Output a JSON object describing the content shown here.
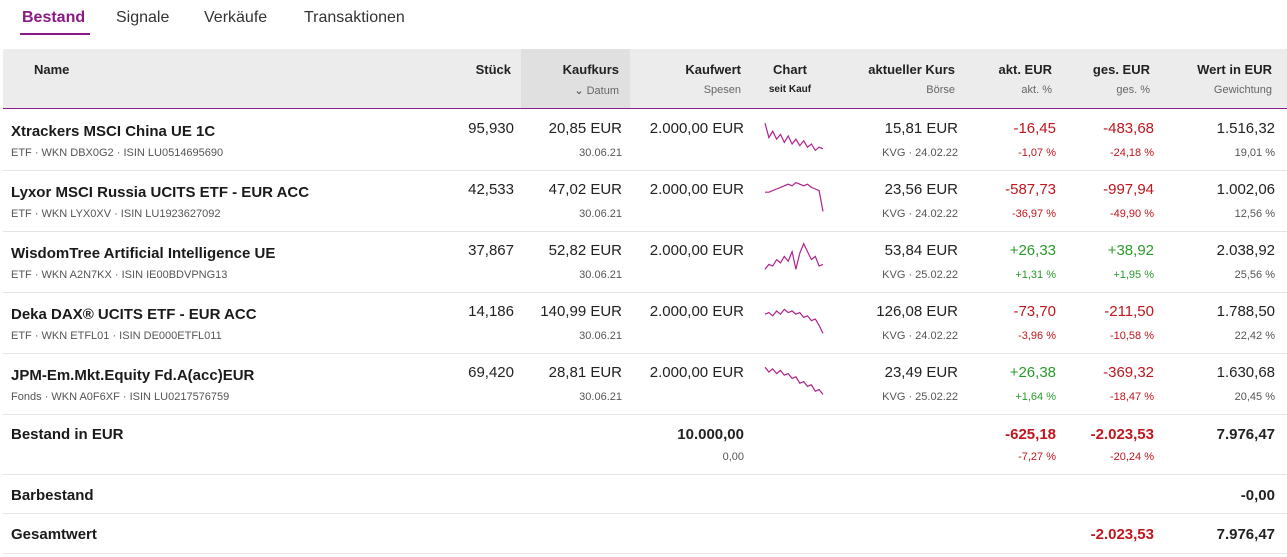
{
  "tabs": [
    "Bestand",
    "Signale",
    "Verkäufe",
    "Transaktionen"
  ],
  "header": {
    "name": "Name",
    "stueck": "Stück",
    "kaufkurs": "Kaufkurs",
    "kaufkurs_sub": "Datum",
    "kaufwert": "Kaufwert",
    "kaufwert_sub": "Spesen",
    "chart": "Chart",
    "chart_sub": "seit Kauf",
    "kurs": "aktueller Kurs",
    "kurs_sub": "Börse",
    "akt": "akt. EUR",
    "akt_sub": "akt. %",
    "ges": "ges. EUR",
    "ges_sub": "ges. %",
    "wert": "Wert in EUR",
    "wert_sub": "Gewichtung"
  },
  "rows": [
    {
      "name": "Xtrackers MSCI China UE 1C",
      "meta": "ETF · WKN DBX0G2 · ISIN LU0514695690",
      "stueck": "95,930",
      "kaufkurs": "20,85 EUR",
      "datum": "30.06.21",
      "kaufwert": "2.000,00 EUR",
      "kurs": "15,81 EUR",
      "boerse": "KVG · 24.02.22",
      "akt_eur": "-16,45",
      "akt_pct": "-1,07 %",
      "ges_eur": "-483,68",
      "ges_pct": "-24,18 %",
      "wert": "1.516,32",
      "gewichtung": "19,01 %",
      "spark": [
        0.1,
        0.55,
        0.35,
        0.6,
        0.45,
        0.7,
        0.5,
        0.75,
        0.6,
        0.8,
        0.65,
        0.85,
        0.75,
        0.95,
        0.85,
        0.9
      ]
    },
    {
      "name": "Lyxor MSCI Russia UCITS ETF - EUR ACC",
      "meta": "ETF · WKN LYX0XV · ISIN LU1923627092",
      "stueck": "42,533",
      "kaufkurs": "47,02 EUR",
      "datum": "30.06.21",
      "kaufwert": "2.000,00 EUR",
      "kurs": "23,56 EUR",
      "boerse": "KVG · 24.02.22",
      "akt_eur": "-587,73",
      "akt_pct": "-36,97 %",
      "ges_eur": "-997,94",
      "ges_pct": "-49,90 %",
      "wert": "1.002,06",
      "gewichtung": "12,56 %",
      "spark": [
        0.35,
        0.35,
        0.3,
        0.25,
        0.2,
        0.15,
        0.1,
        0.15,
        0.05,
        0.1,
        0.15,
        0.1,
        0.2,
        0.25,
        0.3,
        0.95
      ]
    },
    {
      "name": "WisdomTree Artificial Intelligence UE",
      "meta": "ETF · WKN A2N7KX · ISIN IE00BDVPNG13",
      "stueck": "37,867",
      "kaufkurs": "52,82 EUR",
      "datum": "30.06.21",
      "kaufwert": "2.000,00 EUR",
      "kurs": "53,84 EUR",
      "boerse": "KVG · 25.02.22",
      "akt_eur": "+26,33",
      "akt_pct": "+1,31 %",
      "ges_eur": "+38,92",
      "ges_pct": "+1,95 %",
      "wert": "2.038,92",
      "gewichtung": "25,56 %",
      "spark": [
        0.85,
        0.7,
        0.75,
        0.55,
        0.65,
        0.45,
        0.6,
        0.3,
        0.85,
        0.35,
        0.05,
        0.3,
        0.55,
        0.45,
        0.75,
        0.7
      ]
    },
    {
      "name": "Deka DAX® UCITS ETF - EUR ACC",
      "meta": "ETF · WKN ETFL01 · ISIN DE000ETFL011",
      "stueck": "14,186",
      "kaufkurs": "140,99 EUR",
      "datum": "30.06.21",
      "kaufwert": "2.000,00 EUR",
      "kurs": "126,08 EUR",
      "boerse": "KVG · 24.02.22",
      "akt_eur": "-73,70",
      "akt_pct": "-3,96 %",
      "ges_eur": "-211,50",
      "ges_pct": "-10,58 %",
      "wert": "1.788,50",
      "gewichtung": "22,42 %",
      "spark": [
        0.35,
        0.3,
        0.4,
        0.25,
        0.35,
        0.2,
        0.3,
        0.25,
        0.35,
        0.3,
        0.45,
        0.4,
        0.55,
        0.5,
        0.7,
        0.95
      ]
    },
    {
      "name": "JPM-Em.Mkt.Equity Fd.A(acc)EUR",
      "meta": "Fonds · WKN A0F6XF · ISIN LU0217576759",
      "stueck": "69,420",
      "kaufkurs": "28,81 EUR",
      "datum": "30.06.21",
      "kaufwert": "2.000,00 EUR",
      "kurs": "23,49 EUR",
      "boerse": "KVG · 25.02.22",
      "akt_eur": "+26,38",
      "akt_pct": "+1,64 %",
      "ges_eur": "-369,32",
      "ges_pct": "-18,47 %",
      "wert": "1.630,68",
      "gewichtung": "20,45 %",
      "spark": [
        0.1,
        0.25,
        0.15,
        0.3,
        0.2,
        0.35,
        0.3,
        0.45,
        0.4,
        0.6,
        0.55,
        0.7,
        0.65,
        0.85,
        0.8,
        0.95
      ]
    }
  ],
  "total": {
    "label": "Bestand in EUR",
    "kaufwert": "10.000,00",
    "spesen": "0,00",
    "akt_eur": "-625,18",
    "akt_pct": "-7,27 %",
    "ges_eur": "-2.023,53",
    "ges_pct": "-20,24 %",
    "wert": "7.976,47"
  },
  "barbestand": {
    "label": "Barbestand",
    "wert": "-0,00"
  },
  "gesamtwert": {
    "label": "Gesamtwert",
    "ges_eur": "-2.023,53",
    "wert": "7.976,47"
  },
  "colors": {
    "accent": "#8b1a86",
    "negative": "#c0161c",
    "positive": "#2a9a2a",
    "sparkline": "#b0228c"
  }
}
